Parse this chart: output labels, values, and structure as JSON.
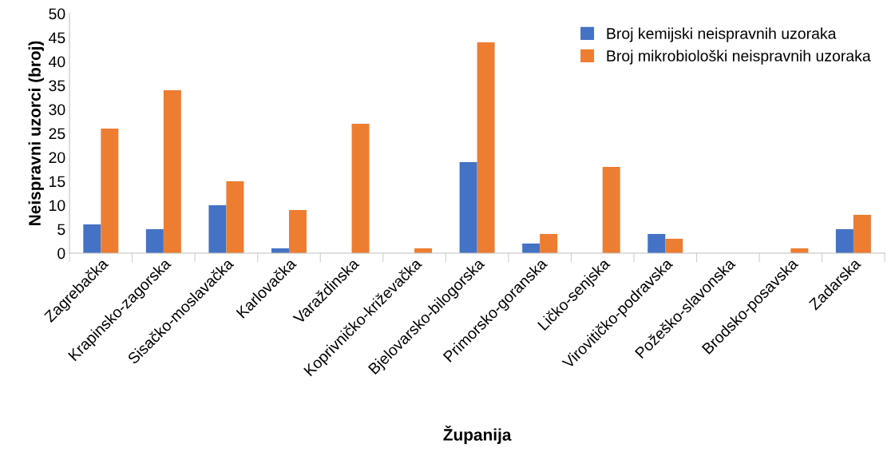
{
  "chart_data": {
    "type": "bar",
    "xlabel": "Županija",
    "ylabel": "Neispravni uzorci (broj)",
    "categories": [
      "Zagrebačka",
      "Krapinsko-zagorska",
      "Sisačko-moslavačka",
      "Karlovačka",
      "Varaždinska",
      "Koprivničko-križevačka",
      "Bjelovarsko-bilogorska",
      "Primorsko-goranska",
      "Ličko-senjska",
      "Virovitičko-podravska",
      "Požeško-slavonska",
      "Brodsko-posavska",
      "Zadarska"
    ],
    "series": [
      {
        "name": "Broj kemijski neispravnih uzoraka",
        "color": "#4472c4",
        "values": [
          6,
          5,
          10,
          1,
          0,
          0,
          19,
          2,
          0,
          4,
          0,
          0,
          5
        ]
      },
      {
        "name": "Broj mikrobiološki neispravnih uzoraka",
        "color": "#ed7d31",
        "values": [
          26,
          34,
          15,
          9,
          27,
          1,
          44,
          4,
          18,
          3,
          0,
          1,
          8
        ]
      }
    ],
    "ylim": [
      0,
      50
    ],
    "yticks": [
      0,
      5,
      10,
      15,
      20,
      25,
      30,
      35,
      40,
      45,
      50
    ],
    "grid": false,
    "legend": "top right"
  }
}
